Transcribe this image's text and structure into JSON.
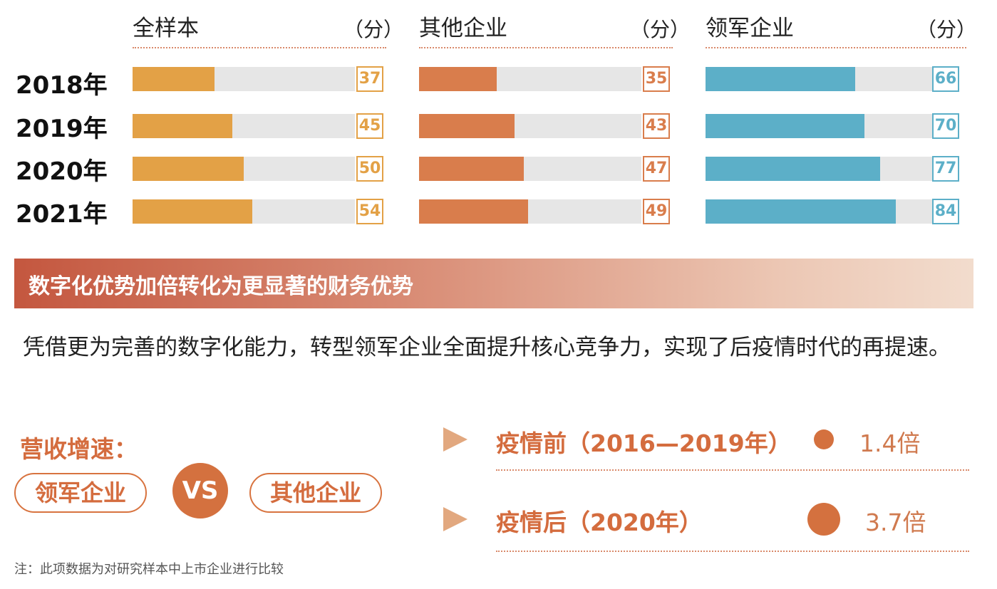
{
  "chart_data": {
    "type": "bar",
    "unit_label": "（分）",
    "categories": [
      "2018年",
      "2019年",
      "2020年",
      "2021年"
    ],
    "xlim": [
      0,
      100
    ],
    "series": [
      {
        "name": "全样本",
        "color": "#e3a146",
        "values": [
          37,
          45,
          50,
          54
        ]
      },
      {
        "name": "其他企业",
        "color": "#d97d4c",
        "values": [
          35,
          43,
          47,
          49
        ]
      },
      {
        "name": "领军企业",
        "color": "#5cafc8",
        "values": [
          66,
          70,
          77,
          84
        ]
      }
    ]
  },
  "banner": {
    "title": "数字化优势加倍转化为更显著的财务优势"
  },
  "body_text": "凭借更为完善的数字化能力，转型领军企业全面提升核心竞争力，实现了后疫情时代的再提速。",
  "revenue": {
    "label": "营收增速：",
    "left_pill": "领军企业",
    "vs": "VS",
    "right_pill": "其他企业",
    "rows": [
      {
        "period": "疫情前（2016—2019年）",
        "multiple": "1.4倍",
        "ratio": 1.4
      },
      {
        "period": "疫情后（2020年）",
        "multiple": "3.7倍",
        "ratio": 3.7
      }
    ]
  },
  "note": "注：此项数据为对研究样本中上市企业进行比较"
}
